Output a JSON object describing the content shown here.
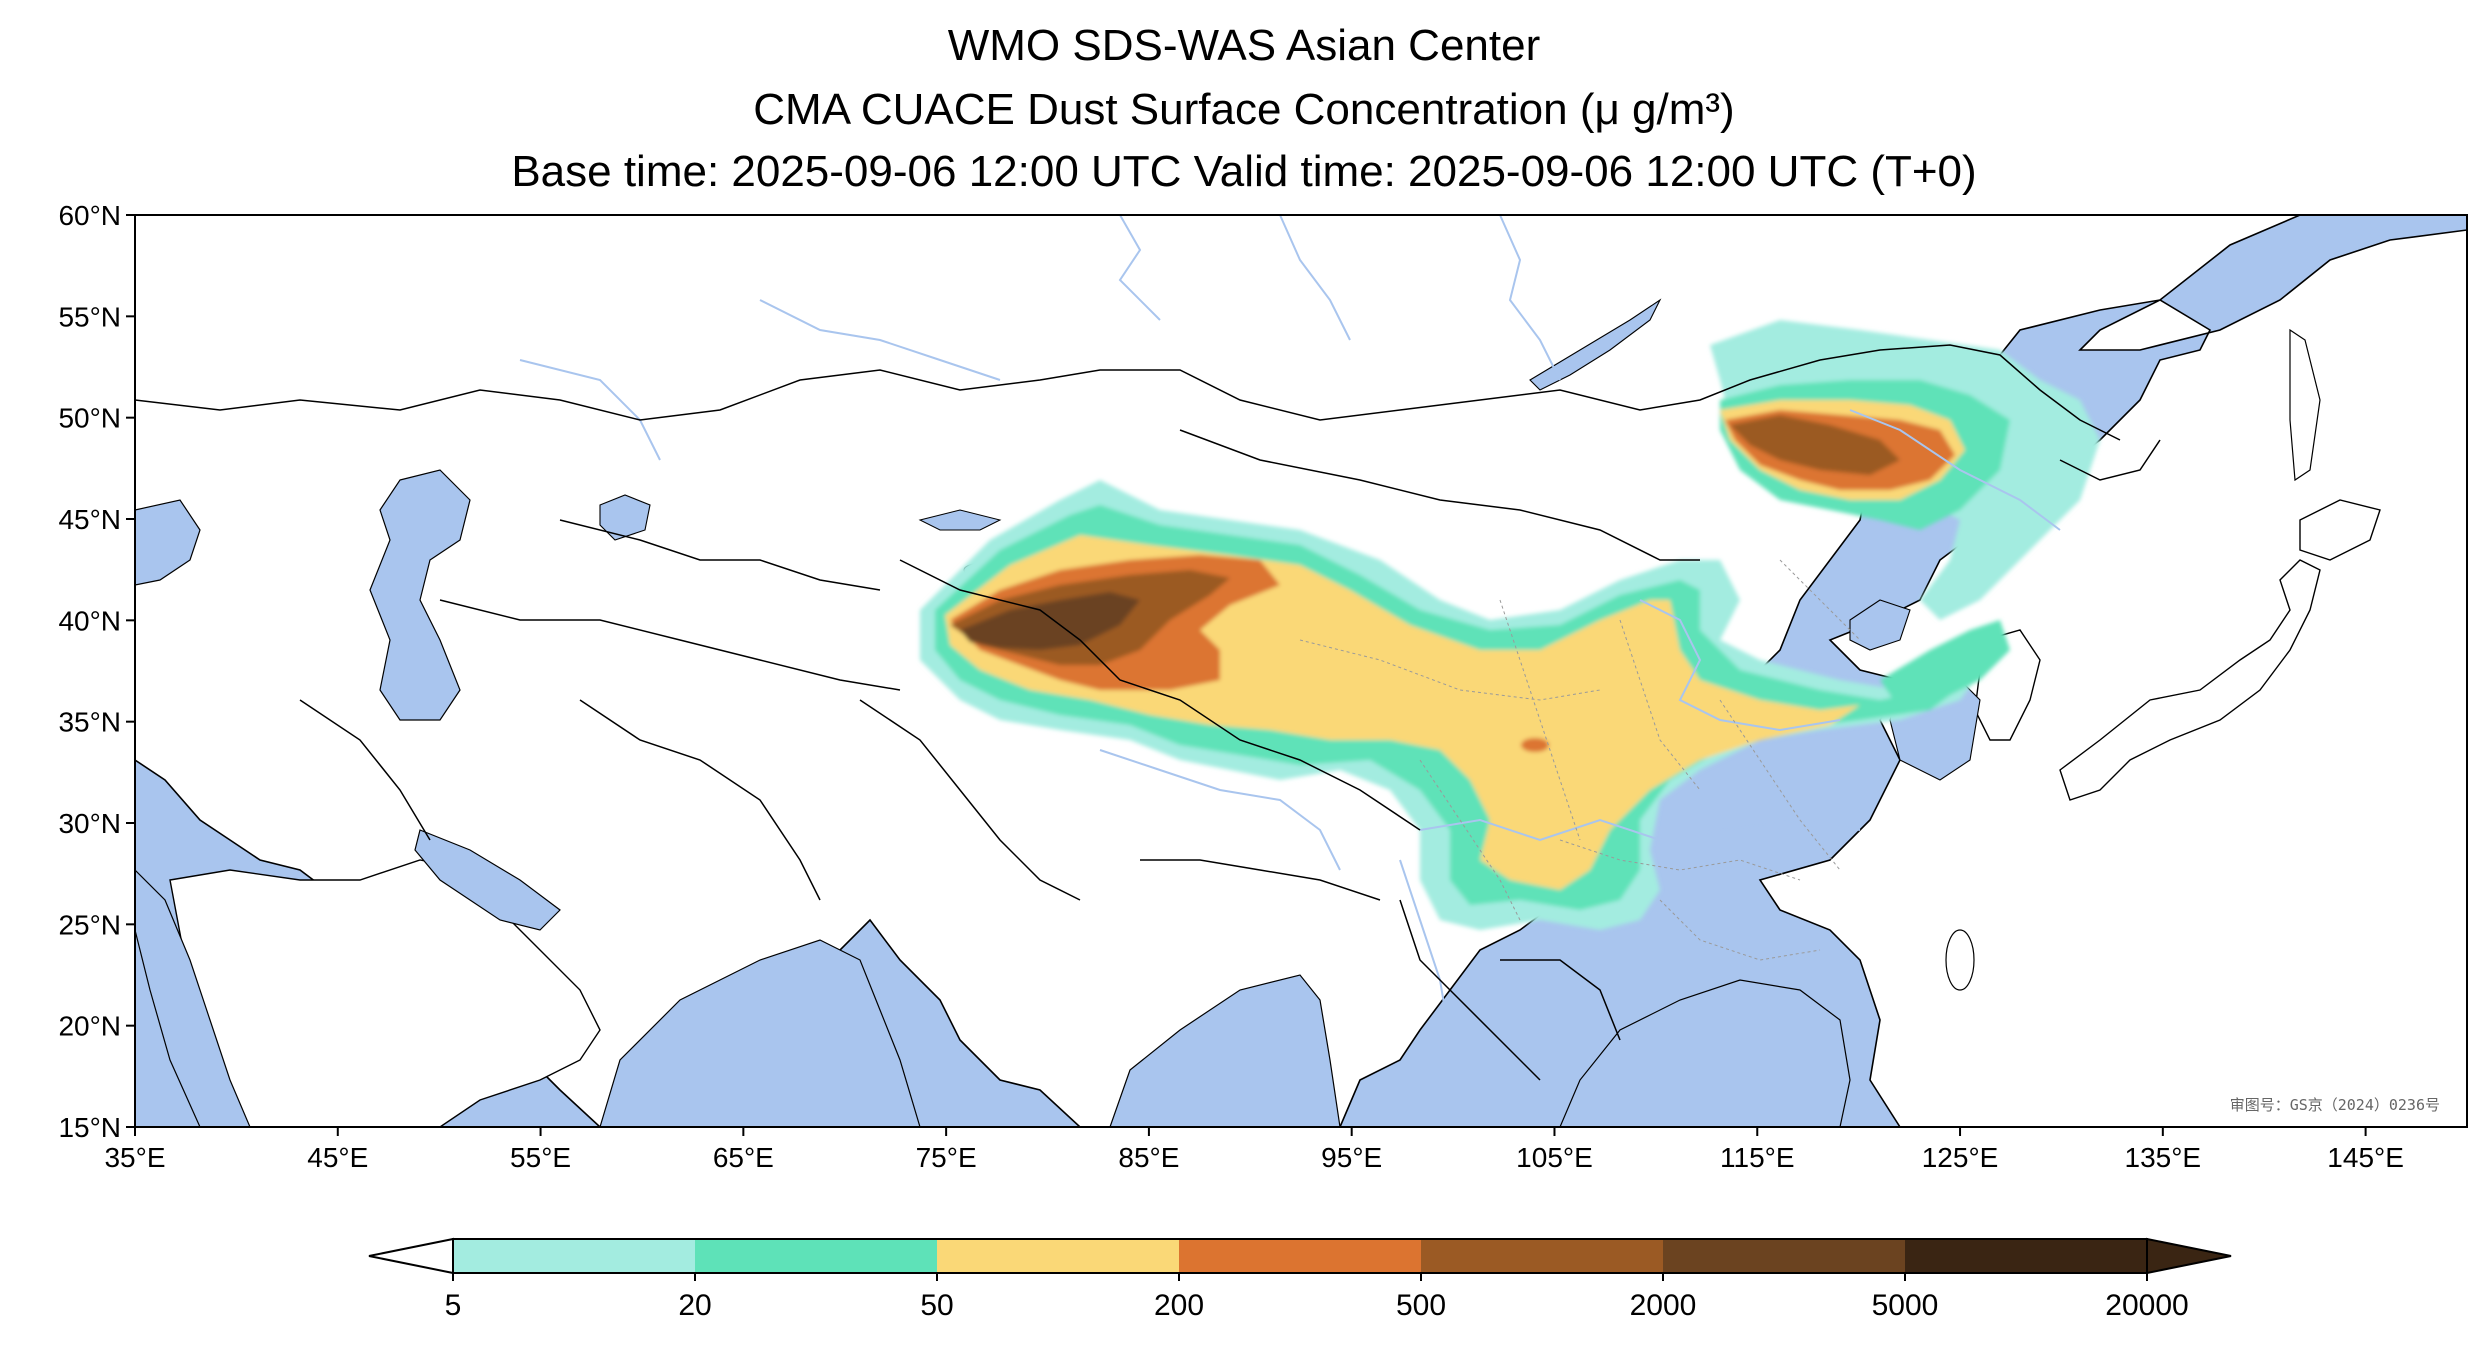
{
  "title": {
    "line1": "WMO SDS-WAS Asian Center",
    "line2": "CMA CUACE Dust Surface Concentration (μ g/m³)",
    "line3": "Base time: 2025-09-06 12:00 UTC Valid time: 2025-09-06 12:00 UTC (T+0)"
  },
  "map": {
    "lon_range": [
      35,
      150
    ],
    "lat_range": [
      15,
      60
    ],
    "lon_ticks": [
      "35°E",
      "45°E",
      "55°E",
      "65°E",
      "75°E",
      "85°E",
      "95°E",
      "105°E",
      "115°E",
      "125°E",
      "135°E",
      "145°E"
    ],
    "lat_ticks": [
      "15°N",
      "20°N",
      "25°N",
      "30°N",
      "35°N",
      "40°N",
      "45°N",
      "50°N",
      "55°N",
      "60°N"
    ],
    "approval_text": "审图号：GS京（2024）0236号",
    "ocean_color": "#a9c5ee",
    "land_color": "#ffffff"
  },
  "colorbar": {
    "type": "legend",
    "levels": [
      "5",
      "20",
      "50",
      "200",
      "500",
      "2000",
      "5000",
      "20000"
    ],
    "colors": [
      "#ffffff",
      "#a3ece0",
      "#5ee2b8",
      "#fad877",
      "#dc7430",
      "#9b5a24",
      "#6b4320",
      "#3a2513"
    ],
    "extend": "both"
  }
}
